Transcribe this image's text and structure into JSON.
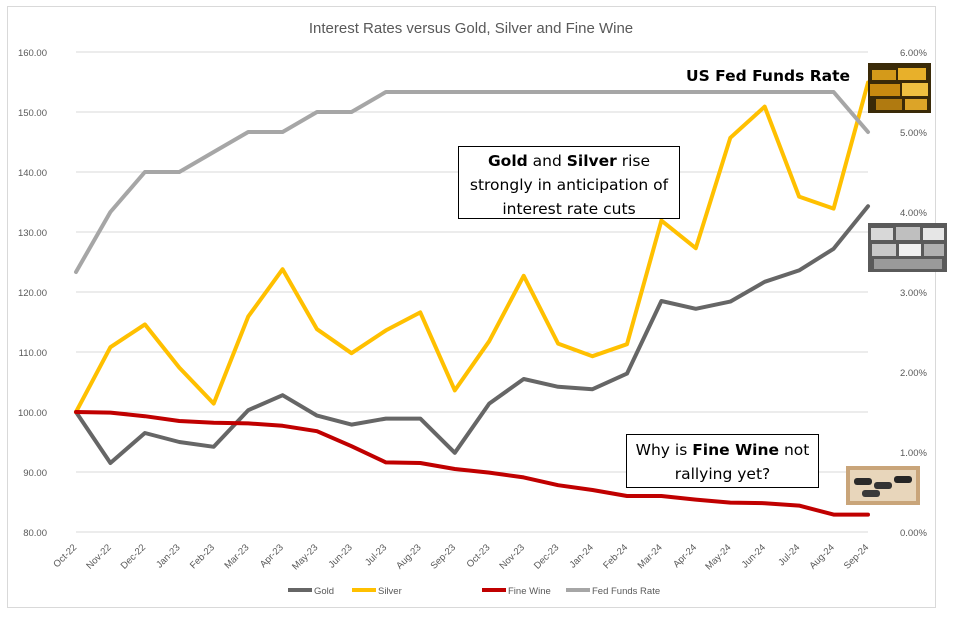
{
  "chart_data": {
    "type": "line",
    "title": "Interest Rates versus Gold, Silver and Fine Wine",
    "categories": [
      "Oct-22",
      "Nov-22",
      "Dec-22",
      "Jan-23",
      "Feb-23",
      "Mar-23",
      "Apr-23",
      "May-23",
      "Jun-23",
      "Jul-23",
      "Aug-23",
      "Sep-23",
      "Oct-23",
      "Nov-23",
      "Dec-23",
      "Jan-24",
      "Feb-24",
      "Mar-24",
      "Apr-24",
      "May-24",
      "Jun-24",
      "Jul-24",
      "Aug-24",
      "Sep-24"
    ],
    "y_left": {
      "min": 80,
      "max": 160,
      "step": 10,
      "ticks": [
        "80.00",
        "90.00",
        "100.00",
        "110.00",
        "120.00",
        "130.00",
        "140.00",
        "150.00",
        "160.00"
      ]
    },
    "y_right": {
      "min": 0,
      "max": 6,
      "step": 1,
      "ticks": [
        "0.00%",
        "1.00%",
        "2.00%",
        "3.00%",
        "4.00%",
        "5.00%",
        "6.00%"
      ]
    },
    "grid": true,
    "legend_position": "bottom",
    "series": [
      {
        "name": "Gold",
        "axis": "left",
        "color": "#666666",
        "values": [
          100,
          91.5,
          96.5,
          95,
          94.2,
          100.3,
          102.8,
          99.4,
          97.9,
          98.9,
          98.9,
          93.2,
          101.4,
          105.5,
          104.2,
          103.8,
          106.4,
          118.5,
          117.2,
          118.4,
          121.7,
          123.6,
          127.2,
          134.3
        ]
      },
      {
        "name": "Silver",
        "axis": "left",
        "color": "#FFC000",
        "values": [
          100,
          110.8,
          114.6,
          107.4,
          101.4,
          115.9,
          123.8,
          113.8,
          109.8,
          113.6,
          116.6,
          103.6,
          111.8,
          122.7,
          111.4,
          109.3,
          111.3,
          131.9,
          127.3,
          145.7,
          150.9,
          135.9,
          133.9,
          154.9
        ]
      },
      {
        "name": "Fine Wine",
        "axis": "left",
        "color": "#C00000",
        "values": [
          100,
          99.9,
          99.3,
          98.5,
          98.2,
          98.1,
          97.7,
          96.8,
          94.3,
          91.6,
          91.5,
          90.5,
          89.9,
          89.1,
          87.8,
          87,
          86,
          86,
          85.4,
          84.9,
          84.8,
          84.4,
          82.9,
          82.9
        ]
      },
      {
        "name": "Fed Funds Rate",
        "axis": "right",
        "color": "#A6A6A6",
        "values": [
          3.25,
          4.0,
          4.5,
          4.5,
          4.75,
          5.0,
          5.0,
          5.25,
          5.25,
          5.5,
          5.5,
          5.5,
          5.5,
          5.5,
          5.5,
          5.5,
          5.5,
          5.5,
          5.5,
          5.5,
          5.5,
          5.5,
          5.5,
          5.0
        ]
      }
    ]
  },
  "annotations": {
    "fed_label": "US Fed Funds Rate",
    "gold_silver": {
      "gold": "Gold",
      "and": " and ",
      "silver": "Silver",
      "line1_rest": " rise",
      "line2": "strongly in anticipation of",
      "line3": "interest rate cuts"
    },
    "wine": {
      "pre": "Why is ",
      "bold": "Fine Wine",
      "post": " not",
      "line2": "rallying yet?"
    }
  },
  "images": [
    "gold-bars-photo",
    "silver-bars-photo",
    "wine-case-photo"
  ]
}
